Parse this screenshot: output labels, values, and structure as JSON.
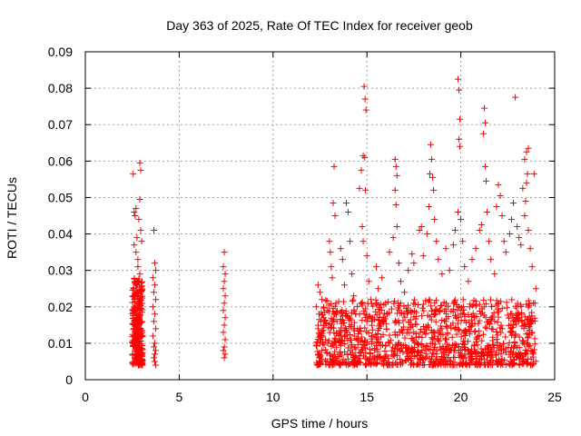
{
  "chart_data": {
    "type": "scatter",
    "title": "Day 363 of 2025, Rate Of TEC Index for receiver geob",
    "xlabel": "GPS time / hours",
    "ylabel": "ROTI / TECUs",
    "xlim": [
      0,
      25
    ],
    "ylim": [
      0,
      0.09
    ],
    "x_ticks": [
      {
        "value": 0,
        "label": "0"
      },
      {
        "value": 5,
        "label": "5"
      },
      {
        "value": 10,
        "label": "10"
      },
      {
        "value": 15,
        "label": "15"
      },
      {
        "value": 20,
        "label": "20"
      },
      {
        "value": 25,
        "label": "25"
      }
    ],
    "y_ticks": [
      {
        "value": 0,
        "label": "0"
      },
      {
        "value": 0.01,
        "label": "0.01"
      },
      {
        "value": 0.02,
        "label": "0.02"
      },
      {
        "value": 0.03,
        "label": "0.03"
      },
      {
        "value": 0.04,
        "label": "0.04"
      },
      {
        "value": 0.05,
        "label": "0.05"
      },
      {
        "value": 0.06,
        "label": "0.06"
      },
      {
        "value": 0.07,
        "label": "0.07"
      },
      {
        "value": 0.08,
        "label": "0.08"
      },
      {
        "value": 0.09,
        "label": "0.09"
      }
    ],
    "grid": true,
    "marker": "+",
    "marker_color": "#ff0000",
    "series": [
      {
        "points": [
          [
            2.55,
            0.0565
          ],
          [
            2.6,
            0.046
          ],
          [
            2.65,
            0.045
          ],
          [
            2.7,
            0.047
          ],
          [
            2.75,
            0.039
          ],
          [
            2.6,
            0.037
          ],
          [
            2.7,
            0.035
          ],
          [
            2.8,
            0.033
          ],
          [
            2.9,
            0.0595
          ],
          [
            2.95,
            0.0575
          ],
          [
            2.9,
            0.0495
          ],
          [
            2.85,
            0.044
          ],
          [
            2.95,
            0.041
          ],
          [
            3.0,
            0.038
          ],
          [
            2.8,
            0.031
          ],
          [
            2.9,
            0.029
          ],
          [
            2.7,
            0.026
          ],
          [
            2.75,
            0.024
          ],
          [
            2.85,
            0.022
          ],
          [
            2.95,
            0.021
          ],
          [
            2.6,
            0.019
          ],
          [
            2.7,
            0.018
          ],
          [
            2.8,
            0.017
          ],
          [
            2.9,
            0.016
          ],
          [
            2.65,
            0.015
          ],
          [
            2.75,
            0.014
          ],
          [
            2.85,
            0.013
          ],
          [
            2.95,
            0.012
          ],
          [
            2.7,
            0.011
          ],
          [
            2.8,
            0.01
          ],
          [
            2.9,
            0.009
          ],
          [
            2.65,
            0.008
          ],
          [
            2.85,
            0.007
          ],
          [
            2.9,
            0.006
          ],
          [
            2.95,
            0.005
          ],
          [
            2.8,
            0.0045
          ],
          [
            2.9,
            0.004
          ],
          [
            3.65,
            0.041
          ],
          [
            3.7,
            0.032
          ],
          [
            3.75,
            0.03
          ],
          [
            3.6,
            0.028
          ],
          [
            3.7,
            0.026
          ],
          [
            3.65,
            0.024
          ],
          [
            3.75,
            0.022
          ],
          [
            3.6,
            0.02
          ],
          [
            3.7,
            0.018
          ],
          [
            3.65,
            0.016
          ],
          [
            3.75,
            0.014
          ],
          [
            3.6,
            0.012
          ],
          [
            3.7,
            0.01
          ],
          [
            3.65,
            0.009
          ],
          [
            3.75,
            0.008
          ],
          [
            3.7,
            0.007
          ],
          [
            3.65,
            0.006
          ],
          [
            3.7,
            0.005
          ],
          [
            3.75,
            0.004
          ],
          [
            7.4,
            0.035
          ],
          [
            7.35,
            0.031
          ],
          [
            7.45,
            0.029
          ],
          [
            7.4,
            0.027
          ],
          [
            7.35,
            0.025
          ],
          [
            7.45,
            0.023
          ],
          [
            7.4,
            0.021
          ],
          [
            7.35,
            0.019
          ],
          [
            7.45,
            0.017
          ],
          [
            7.4,
            0.015
          ],
          [
            7.35,
            0.013
          ],
          [
            7.45,
            0.011
          ],
          [
            7.4,
            0.009
          ],
          [
            7.35,
            0.008
          ],
          [
            7.45,
            0.007
          ],
          [
            7.4,
            0.006
          ],
          [
            12.4,
            0.026
          ],
          [
            12.5,
            0.024
          ],
          [
            12.6,
            0.022
          ],
          [
            12.3,
            0.02
          ],
          [
            12.45,
            0.018
          ],
          [
            12.55,
            0.016
          ],
          [
            12.4,
            0.014
          ],
          [
            12.5,
            0.012
          ],
          [
            12.35,
            0.01
          ],
          [
            12.6,
            0.008
          ],
          [
            12.45,
            0.006
          ],
          [
            12.5,
            0.005
          ],
          [
            12.4,
            0.004
          ],
          [
            12.7,
            0.017
          ],
          [
            12.8,
            0.011
          ],
          [
            12.9,
            0.019
          ],
          [
            13.0,
            0.038
          ],
          [
            13.05,
            0.035
          ],
          [
            13.1,
            0.031
          ],
          [
            13.2,
            0.0485
          ],
          [
            13.25,
            0.0585
          ],
          [
            13.3,
            0.045
          ],
          [
            13.15,
            0.028
          ],
          [
            13.35,
            0.021
          ],
          [
            13.4,
            0.016
          ],
          [
            13.5,
            0.012
          ],
          [
            13.6,
            0.036
          ],
          [
            13.7,
            0.033
          ],
          [
            13.8,
            0.026
          ],
          [
            13.9,
            0.0485
          ],
          [
            14.0,
            0.046
          ],
          [
            14.1,
            0.038
          ],
          [
            14.2,
            0.029
          ],
          [
            14.3,
            0.023
          ],
          [
            14.4,
            0.018
          ],
          [
            14.5,
            0.014
          ],
          [
            14.6,
            0.0525
          ],
          [
            14.7,
            0.0575
          ],
          [
            14.8,
            0.0615
          ],
          [
            14.85,
            0.0805
          ],
          [
            14.9,
            0.077
          ],
          [
            14.95,
            0.074
          ],
          [
            14.88,
            0.061
          ],
          [
            14.92,
            0.052
          ],
          [
            14.75,
            0.042
          ],
          [
            14.8,
            0.038
          ],
          [
            15.0,
            0.034
          ],
          [
            15.1,
            0.027
          ],
          [
            15.2,
            0.022
          ],
          [
            15.3,
            0.017
          ],
          [
            15.5,
            0.031
          ],
          [
            15.6,
            0.025
          ],
          [
            15.8,
            0.028
          ],
          [
            16.0,
            0.021
          ],
          [
            16.2,
            0.035
          ],
          [
            16.4,
            0.039
          ],
          [
            16.5,
            0.0605
          ],
          [
            16.55,
            0.0585
          ],
          [
            16.6,
            0.056
          ],
          [
            16.5,
            0.052
          ],
          [
            16.55,
            0.048
          ],
          [
            16.6,
            0.042
          ],
          [
            16.7,
            0.032
          ],
          [
            16.8,
            0.027
          ],
          [
            17.0,
            0.024
          ],
          [
            17.2,
            0.03
          ],
          [
            17.4,
            0.0345
          ],
          [
            17.5,
            0.032
          ],
          [
            17.8,
            0.041
          ],
          [
            17.9,
            0.042
          ],
          [
            18.0,
            0.034
          ],
          [
            18.2,
            0.04
          ],
          [
            18.3,
            0.0475
          ],
          [
            18.35,
            0.0565
          ],
          [
            18.4,
            0.0645
          ],
          [
            18.45,
            0.0605
          ],
          [
            18.5,
            0.0555
          ],
          [
            18.55,
            0.052
          ],
          [
            18.6,
            0.044
          ],
          [
            18.7,
            0.038
          ],
          [
            18.8,
            0.033
          ],
          [
            19.0,
            0.029
          ],
          [
            19.2,
            0.036
          ],
          [
            19.4,
            0.03
          ],
          [
            19.6,
            0.037
          ],
          [
            19.7,
            0.041
          ],
          [
            19.85,
            0.0825
          ],
          [
            19.9,
            0.0795
          ],
          [
            19.95,
            0.0715
          ],
          [
            19.9,
            0.066
          ],
          [
            19.95,
            0.064
          ],
          [
            19.85,
            0.046
          ],
          [
            20.0,
            0.044
          ],
          [
            20.1,
            0.038
          ],
          [
            20.2,
            0.031
          ],
          [
            20.4,
            0.027
          ],
          [
            20.6,
            0.033
          ],
          [
            20.8,
            0.036
          ],
          [
            21.0,
            0.041
          ],
          [
            21.1,
            0.0425
          ],
          [
            21.2,
            0.0675
          ],
          [
            21.25,
            0.0745
          ],
          [
            21.3,
            0.0705
          ],
          [
            21.3,
            0.0585
          ],
          [
            21.35,
            0.0545
          ],
          [
            21.4,
            0.046
          ],
          [
            21.5,
            0.038
          ],
          [
            21.6,
            0.033
          ],
          [
            21.8,
            0.029
          ],
          [
            21.9,
            0.0475
          ],
          [
            22.0,
            0.0535
          ],
          [
            22.1,
            0.0505
          ],
          [
            22.2,
            0.045
          ],
          [
            22.3,
            0.038
          ],
          [
            22.4,
            0.035
          ],
          [
            22.6,
            0.04
          ],
          [
            22.7,
            0.044
          ],
          [
            22.8,
            0.0485
          ],
          [
            22.9,
            0.0775
          ],
          [
            23.0,
            0.042
          ],
          [
            23.1,
            0.039
          ],
          [
            23.2,
            0.037
          ],
          [
            23.3,
            0.0525
          ],
          [
            23.4,
            0.0605
          ],
          [
            23.5,
            0.0625
          ],
          [
            23.6,
            0.0635
          ],
          [
            23.55,
            0.0565
          ],
          [
            23.5,
            0.054
          ],
          [
            23.45,
            0.049
          ],
          [
            23.4,
            0.045
          ],
          [
            23.6,
            0.041
          ],
          [
            23.7,
            0.036
          ],
          [
            23.8,
            0.031
          ],
          [
            23.9,
            0.0565
          ],
          [
            24.0,
            0.025
          ],
          [
            23.95,
            0.021
          ]
        ]
      }
    ],
    "dense_bands": [
      {
        "x_range": [
          12.3,
          24.0
        ],
        "y_range": [
          0.004,
          0.022
        ],
        "density": "high"
      },
      {
        "x_range": [
          2.5,
          3.05
        ],
        "y_range": [
          0.004,
          0.028
        ],
        "density": "high"
      }
    ]
  }
}
